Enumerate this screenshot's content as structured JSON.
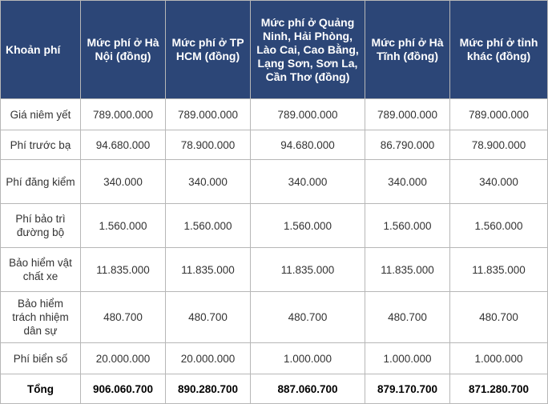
{
  "table": {
    "headers": [
      "Khoản phí",
      "Mức phí ở Hà Nội (đồng)",
      "Mức phí ở TP HCM (đồng)",
      "Mức phí ở Quảng Ninh, Hải Phòng, Lào Cai, Cao Bằng, Lạng Sơn, Sơn La, Cần Thơ (đồng)",
      "Mức phí ở Hà Tĩnh (đồng)",
      "Mức phí ở tỉnh khác (đồng)"
    ],
    "rows": [
      [
        "Giá niêm yết",
        "789.000.000",
        "789.000.000",
        "789.000.000",
        "789.000.000",
        "789.000.000"
      ],
      [
        "Phí trước bạ",
        "94.680.000",
        "78.900.000",
        "94.680.000",
        "86.790.000",
        "78.900.000"
      ],
      [
        "Phí đăng kiểm",
        "340.000",
        "340.000",
        "340.000",
        "340.000",
        "340.000"
      ],
      [
        "Phí bảo trì đường bộ",
        "1.560.000",
        "1.560.000",
        "1.560.000",
        "1.560.000",
        "1.560.000"
      ],
      [
        "Bảo hiểm vật chất xe",
        "11.835.000",
        "11.835.000",
        "11.835.000",
        "11.835.000",
        "11.835.000"
      ],
      [
        "Bảo hiểm trách nhiệm dân sự",
        "480.700",
        "480.700",
        "480.700",
        "480.700",
        "480.700"
      ],
      [
        "Phí biển số",
        "20.000.000",
        "20.000.000",
        "1.000.000",
        "1.000.000",
        "1.000.000"
      ],
      [
        "Tổng",
        "906.060.700",
        "890.280.700",
        "887.060.700",
        "879.170.700",
        "871.280.700"
      ]
    ]
  }
}
